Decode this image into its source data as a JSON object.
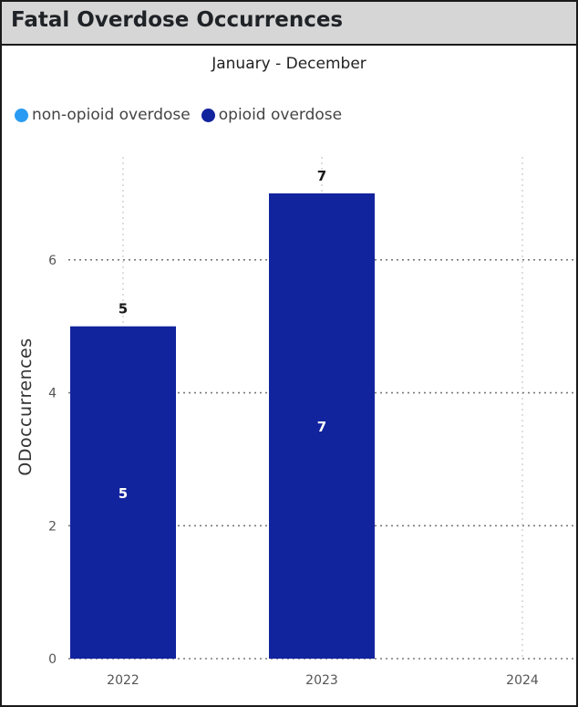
{
  "header": {
    "title": "Fatal Overdose Occurrences"
  },
  "chart_data": {
    "type": "bar",
    "title": "Fatal Overdose Occurrences",
    "subtitle": "January - December",
    "categories": [
      "2022",
      "2023",
      "2024"
    ],
    "series": [
      {
        "name": "non-opioid overdose",
        "color": "#2a9bf2",
        "values": [
          0,
          0,
          0
        ]
      },
      {
        "name": "opioid overdose",
        "color": "#12239e",
        "values": [
          5,
          7,
          0
        ]
      }
    ],
    "data_labels": [
      "5",
      "7",
      ""
    ],
    "ylabel": "ODoccurrences",
    "xlabel": "",
    "ylim": [
      0,
      7.8
    ],
    "yticks": [
      0,
      2,
      4,
      6
    ],
    "grid": true,
    "legend_position": "top-left",
    "bar_color": "#12239e",
    "outside_label_color": "#1a1a1a",
    "inside_label_color": "#ffffff"
  }
}
